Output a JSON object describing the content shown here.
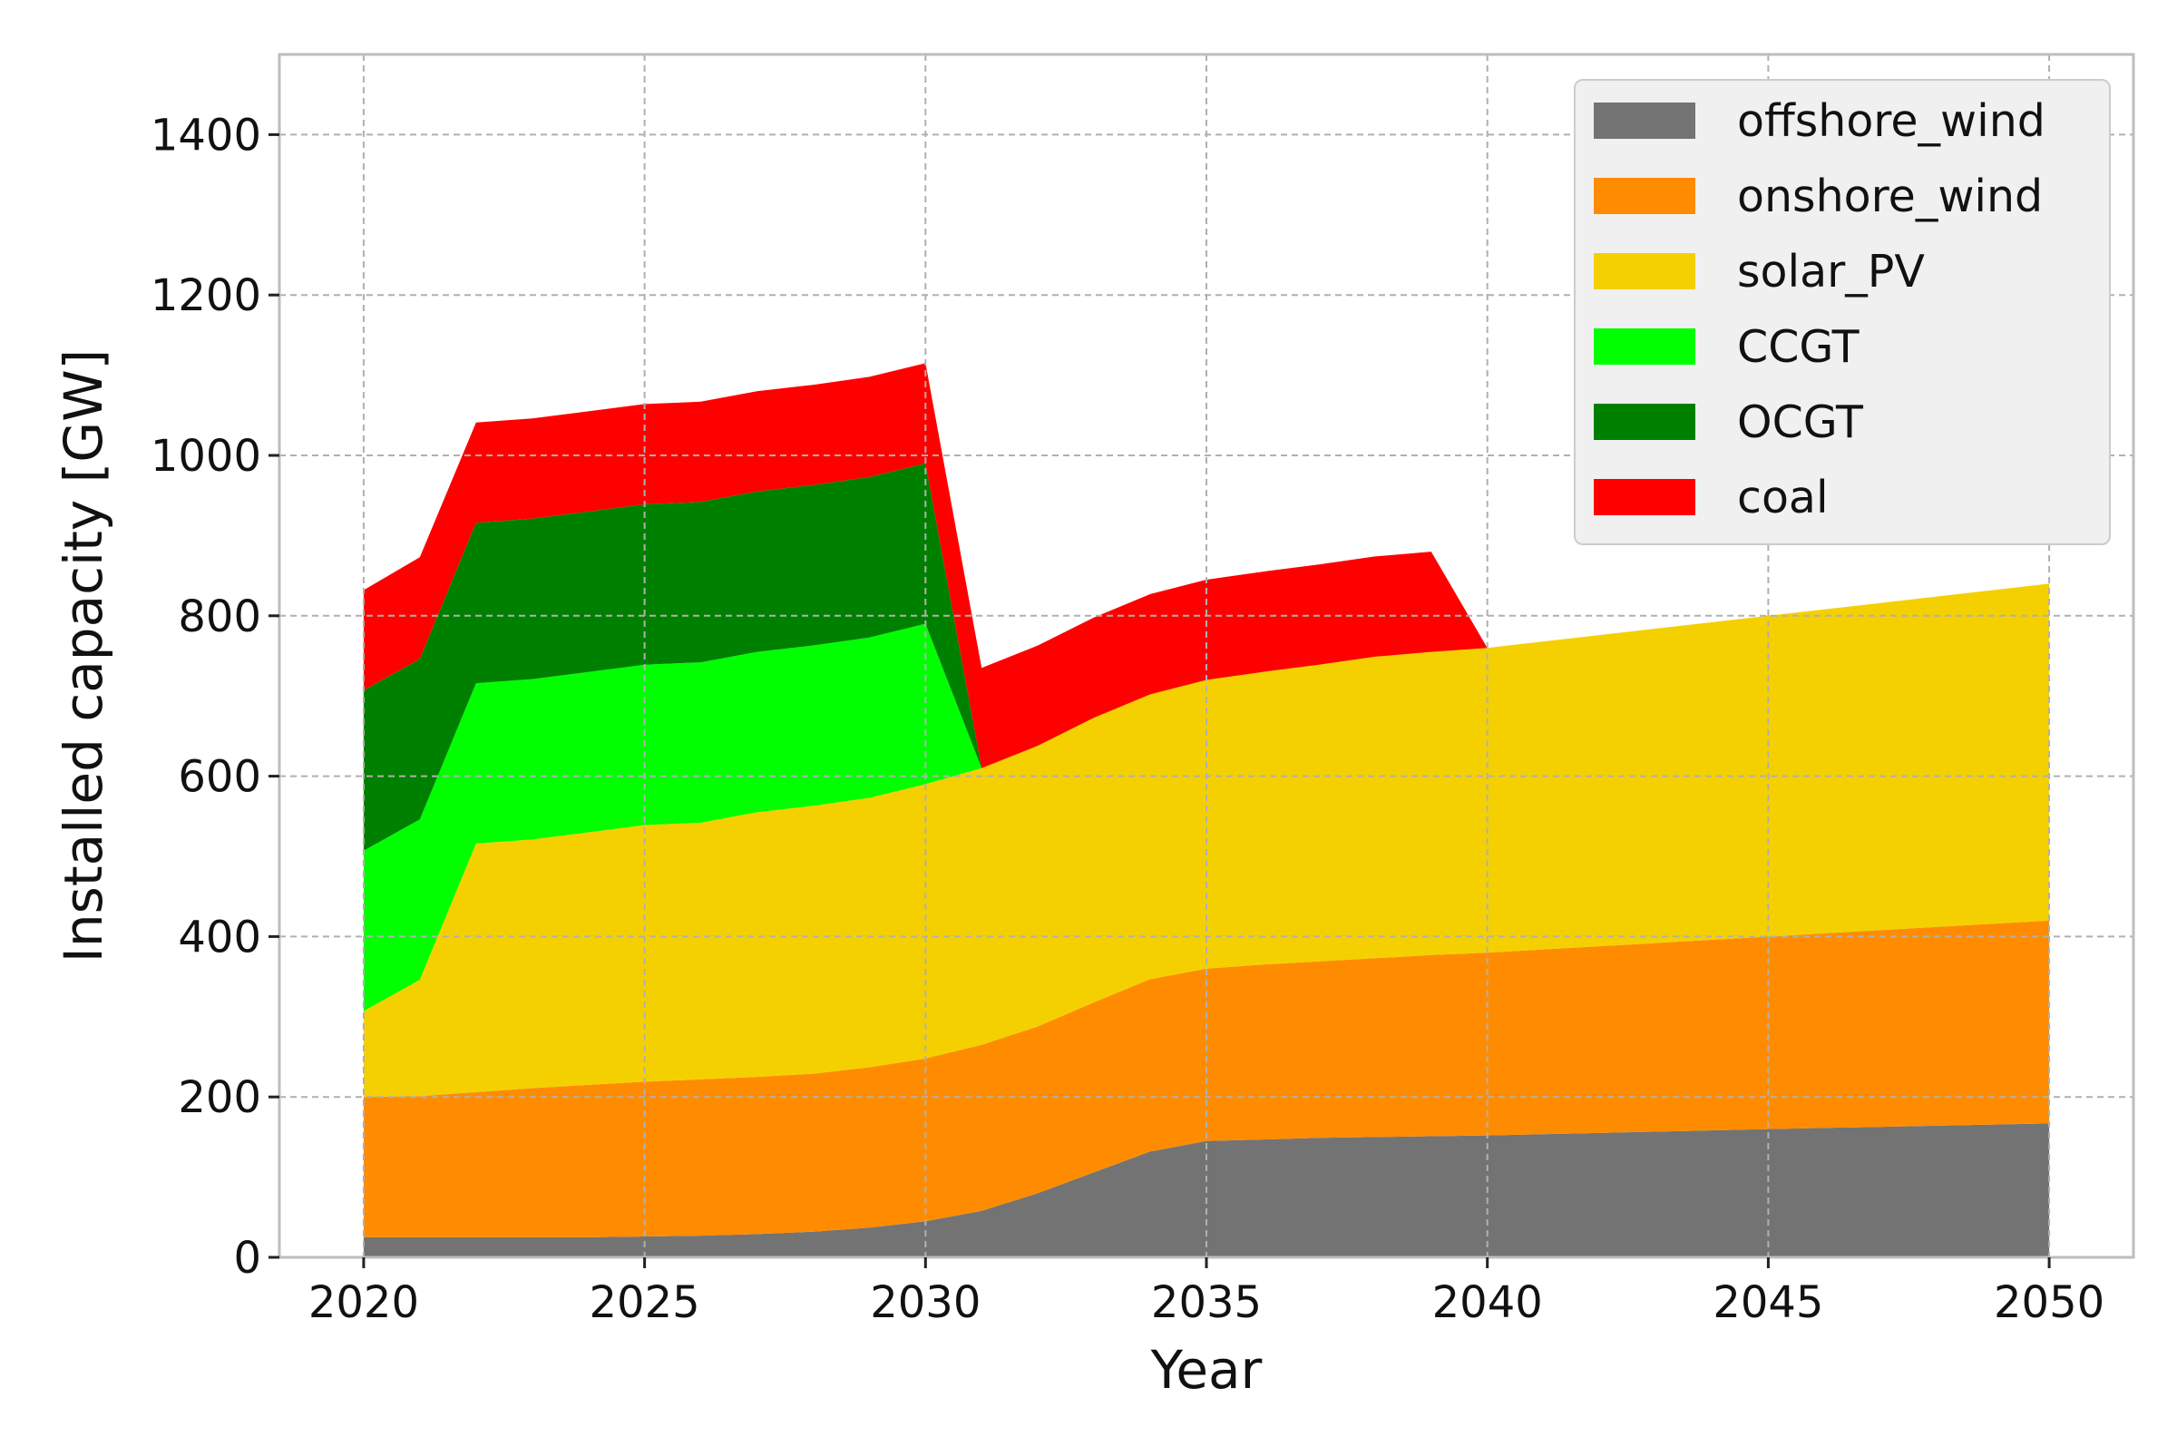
{
  "chart_data": {
    "type": "area",
    "stacked": true,
    "title": "",
    "xlabel": "Year",
    "ylabel": "Installed capacity [GW]",
    "xlim": [
      2018.5,
      2051.5
    ],
    "ylim": [
      0,
      1500
    ],
    "x_ticks": [
      2020,
      2025,
      2030,
      2035,
      2040,
      2045,
      2050
    ],
    "y_ticks": [
      0,
      200,
      400,
      600,
      800,
      1000,
      1200,
      1400
    ],
    "grid": true,
    "legend_position": "top-right",
    "x": [
      2020,
      2021,
      2022,
      2023,
      2024,
      2025,
      2026,
      2027,
      2028,
      2029,
      2030,
      2031,
      2032,
      2033,
      2034,
      2035,
      2036,
      2037,
      2038,
      2039,
      2040,
      2045,
      2050
    ],
    "series": [
      {
        "name": "offshore_wind",
        "color": "#737373",
        "values": [
          25,
          25,
          25,
          25,
          25,
          26,
          27,
          29,
          32,
          37,
          45,
          58,
          80,
          106,
          132,
          145,
          147,
          149,
          150,
          151,
          152,
          160,
          167
        ]
      },
      {
        "name": "onshore_wind",
        "color": "#FF8C00",
        "values": [
          175,
          176,
          181,
          186,
          190,
          193,
          195,
          196,
          197,
          200,
          203,
          207,
          208,
          212,
          215,
          215,
          218,
          220,
          223,
          226,
          228,
          240,
          253
        ]
      },
      {
        "name": "solar_PV",
        "color": "#F5D000",
        "values": [
          107,
          145,
          310,
          310,
          315,
          320,
          320,
          330,
          334,
          336,
          342,
          345,
          350,
          355,
          355,
          360,
          365,
          370,
          376,
          378,
          380,
          400,
          420
        ]
      },
      {
        "name": "CCGT",
        "color": "#00FF00",
        "values": [
          200,
          200,
          200,
          200,
          200,
          200,
          200,
          200,
          200,
          200,
          200,
          0,
          0,
          0,
          0,
          0,
          0,
          0,
          0,
          0,
          0,
          0,
          0
        ]
      },
      {
        "name": "OCGT",
        "color": "#008000",
        "values": [
          200,
          200,
          200,
          200,
          200,
          200,
          200,
          200,
          200,
          200,
          200,
          0,
          0,
          0,
          0,
          0,
          0,
          0,
          0,
          0,
          0,
          0,
          0
        ]
      },
      {
        "name": "coal",
        "color": "#FF0000",
        "values": [
          125,
          127,
          125,
          125,
          125,
          125,
          125,
          125,
          125,
          125,
          125,
          125,
          125,
          125,
          125,
          125,
          125,
          125,
          125,
          125,
          0,
          0,
          0
        ]
      }
    ]
  }
}
